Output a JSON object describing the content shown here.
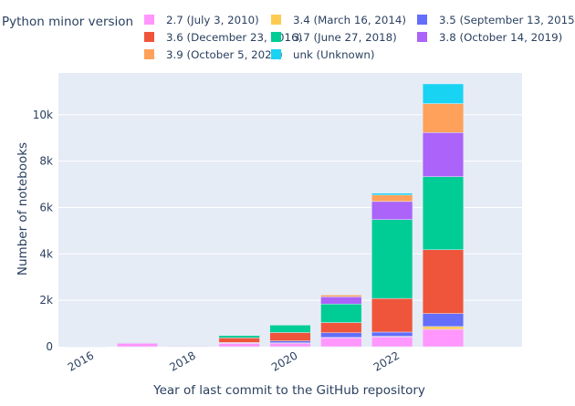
{
  "chart_data": {
    "type": "bar",
    "stacked": true,
    "xlabel": "Year of last commit to the GitHub repository",
    "ylabel": "Number of notebooks",
    "legend_title": "Python minor version",
    "legend_position": "top",
    "grid": true,
    "ylim": [
      0,
      11800
    ],
    "yticks": [
      0,
      2000,
      4000,
      6000,
      8000,
      10000
    ],
    "ytick_labels": [
      "0",
      "2k",
      "4k",
      "6k",
      "8k",
      "10k"
    ],
    "xlim": [
      2015.45,
      2024.55
    ],
    "xticks": [
      2016,
      2018,
      2020,
      2022
    ],
    "xtick_labels": [
      "2016",
      "2018",
      "2020",
      "2022"
    ],
    "x": [
      2016,
      2017,
      2018,
      2019,
      2020,
      2021,
      2022,
      2023
    ],
    "series": [
      {
        "name": "2.7 (July 3, 2010)",
        "color": "#FF97FF",
        "values": [
          10,
          160,
          30,
          150,
          150,
          380,
          420,
          750
        ]
      },
      {
        "name": "3.4 (March 16, 2014)",
        "color": "#FECB52",
        "values": [
          0,
          5,
          0,
          10,
          20,
          20,
          30,
          120
        ]
      },
      {
        "name": "3.5 (September 13, 2015)",
        "color": "#636EFA",
        "values": [
          0,
          5,
          0,
          20,
          80,
          200,
          180,
          560
        ]
      },
      {
        "name": "3.6 (December 23, 2016)",
        "color": "#EF553B",
        "values": [
          0,
          10,
          10,
          200,
          360,
          440,
          1450,
          2750
        ]
      },
      {
        "name": "3.7 (June 27, 2018)",
        "color": "#00CC96",
        "values": [
          0,
          10,
          0,
          100,
          320,
          800,
          3400,
          3150
        ]
      },
      {
        "name": "3.8 (October 14, 2019)",
        "color": "#AB63FA",
        "values": [
          0,
          0,
          0,
          0,
          0,
          310,
          780,
          1900
        ]
      },
      {
        "name": "3.9 (October 5, 2020)",
        "color": "#FFA15A",
        "values": [
          0,
          0,
          0,
          0,
          0,
          80,
          280,
          1250
        ]
      },
      {
        "name": "unk (Unknown)",
        "color": "#19D3F3",
        "values": [
          0,
          0,
          0,
          0,
          0,
          20,
          80,
          850
        ]
      }
    ]
  },
  "colors": {
    "plot_background": "#E5ECF6",
    "gridline": "#ffffff",
    "text": "#2a3f5f"
  }
}
